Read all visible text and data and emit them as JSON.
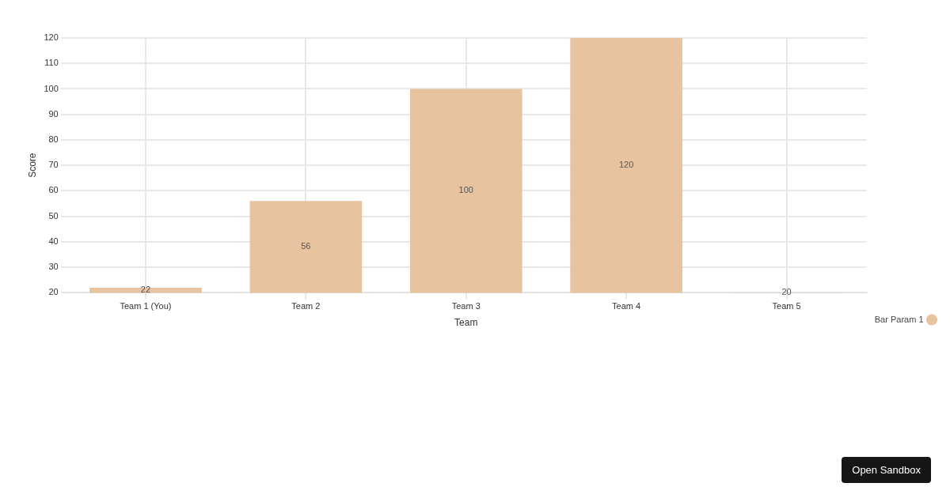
{
  "chart_data": {
    "type": "bar",
    "xlabel": "Team",
    "ylabel": "Score",
    "categories": [
      "Team 1 (You)",
      "Team 2",
      "Team 3",
      "Team 4",
      "Team 5"
    ],
    "series": [
      {
        "name": "Bar Param 1",
        "color": "#e8c3a0",
        "values": [
          22,
          56,
          100,
          120,
          20
        ]
      }
    ],
    "ylim": [
      20,
      120
    ],
    "yticks": [
      20,
      30,
      40,
      50,
      60,
      70,
      80,
      90,
      100,
      110,
      120
    ],
    "grid": true,
    "legend": "right",
    "data_labels": true,
    "annotations": [
      "Open Sandbox"
    ]
  }
}
